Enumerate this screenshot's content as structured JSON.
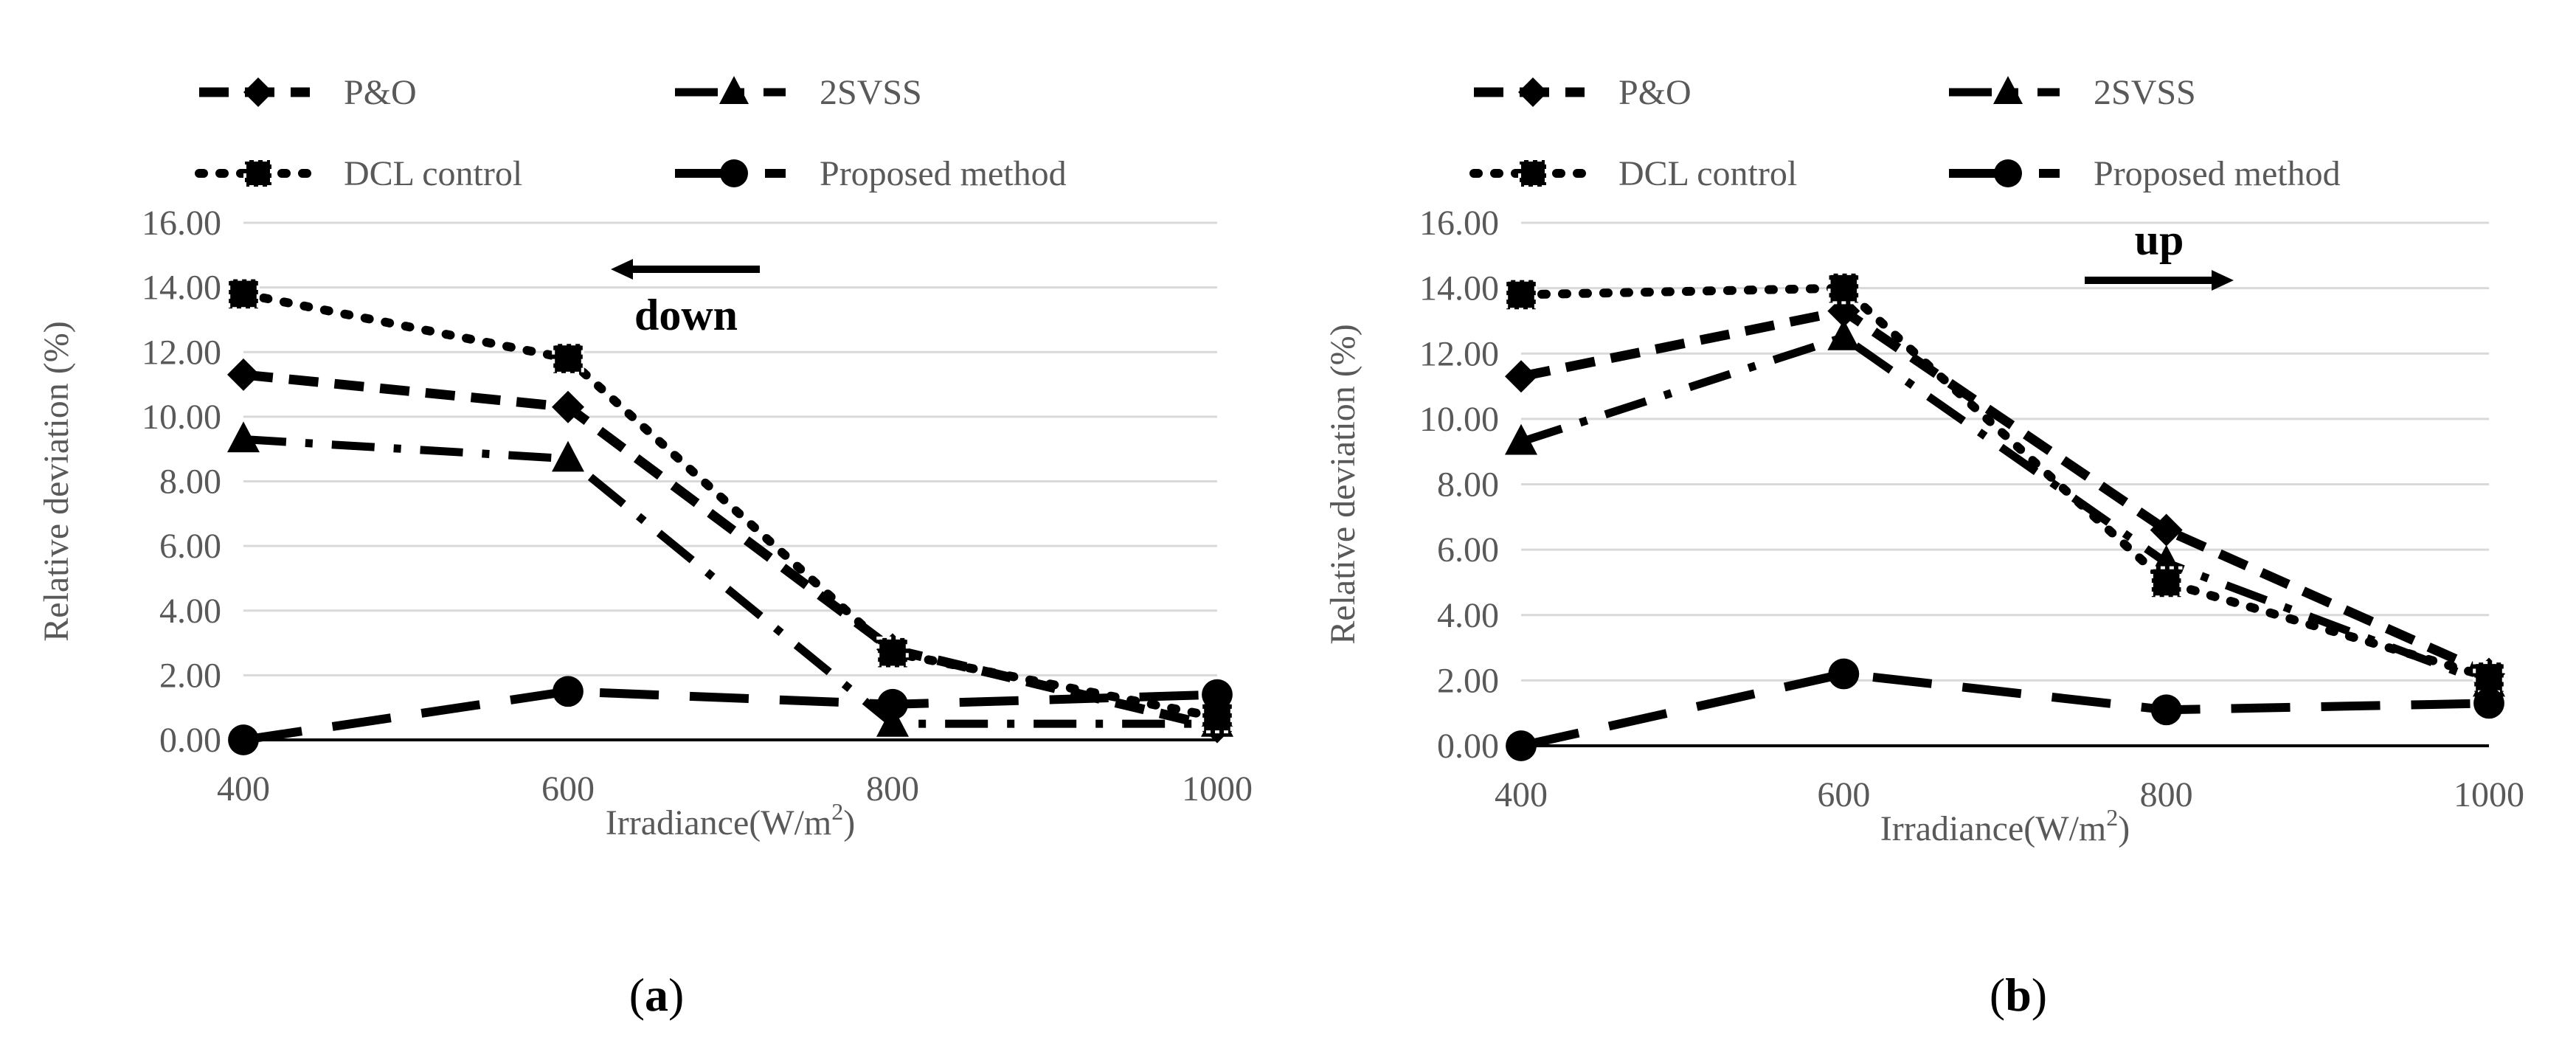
{
  "legend": {
    "po": "P&O",
    "svss": "2SVSS",
    "dcl": "DCL control",
    "proposed": "Proposed method"
  },
  "colors": {
    "series": "#000000",
    "grid": "#d9d9d9",
    "axis_text": "#595959",
    "background": "#ffffff"
  },
  "chart_data": [
    {
      "type": "line",
      "panel_label": "(a)",
      "annotation": "down",
      "annotation_arrow": "left",
      "xlabel": "Irradiance(W/m²)",
      "ylabel": "Relative deviation (%)",
      "categories": [
        "400",
        "600",
        "800",
        "1000"
      ],
      "ylim": [
        0,
        16
      ],
      "yticks": [
        "0.00",
        "2.00",
        "4.00",
        "6.00",
        "8.00",
        "10.00",
        "12.00",
        "14.00",
        "16.00"
      ],
      "grid": true,
      "legend_position": "top",
      "series": [
        {
          "name": "P&O",
          "marker": "diamond",
          "dash": "medium-dash",
          "values": [
            11.3,
            10.3,
            2.8,
            0.4
          ]
        },
        {
          "name": "2SVSS",
          "marker": "triangle",
          "dash": "dash-dot",
          "values": [
            9.3,
            8.7,
            0.5,
            0.5
          ]
        },
        {
          "name": "DCL control",
          "marker": "square",
          "dash": "dot",
          "values": [
            13.8,
            11.8,
            2.7,
            0.7
          ]
        },
        {
          "name": "Proposed method",
          "marker": "circle",
          "dash": "long-dash",
          "values": [
            0.0,
            1.5,
            1.1,
            1.4
          ]
        }
      ]
    },
    {
      "type": "line",
      "panel_label": "(b)",
      "annotation": "up",
      "annotation_arrow": "right",
      "xlabel": "Irradiance(W/m²)",
      "ylabel": "Relative deviation (%)",
      "categories": [
        "400",
        "600",
        "800",
        "1000"
      ],
      "ylim": [
        0,
        16
      ],
      "yticks": [
        "0.00",
        "2.00",
        "4.00",
        "6.00",
        "8.00",
        "10.00",
        "12.00",
        "14.00",
        "16.00"
      ],
      "grid": true,
      "legend_position": "top",
      "series": [
        {
          "name": "P&O",
          "marker": "diamond",
          "dash": "medium-dash",
          "values": [
            11.3,
            13.3,
            6.6,
            2.2
          ]
        },
        {
          "name": "2SVSS",
          "marker": "triangle",
          "dash": "dash-dot",
          "values": [
            9.3,
            12.5,
            5.6,
            1.9
          ]
        },
        {
          "name": "DCL control",
          "marker": "square",
          "dash": "dot",
          "values": [
            13.8,
            14.0,
            5.0,
            2.1
          ]
        },
        {
          "name": "Proposed method",
          "marker": "circle",
          "dash": "long-dash",
          "values": [
            0.0,
            2.2,
            1.1,
            1.3
          ]
        }
      ]
    }
  ]
}
